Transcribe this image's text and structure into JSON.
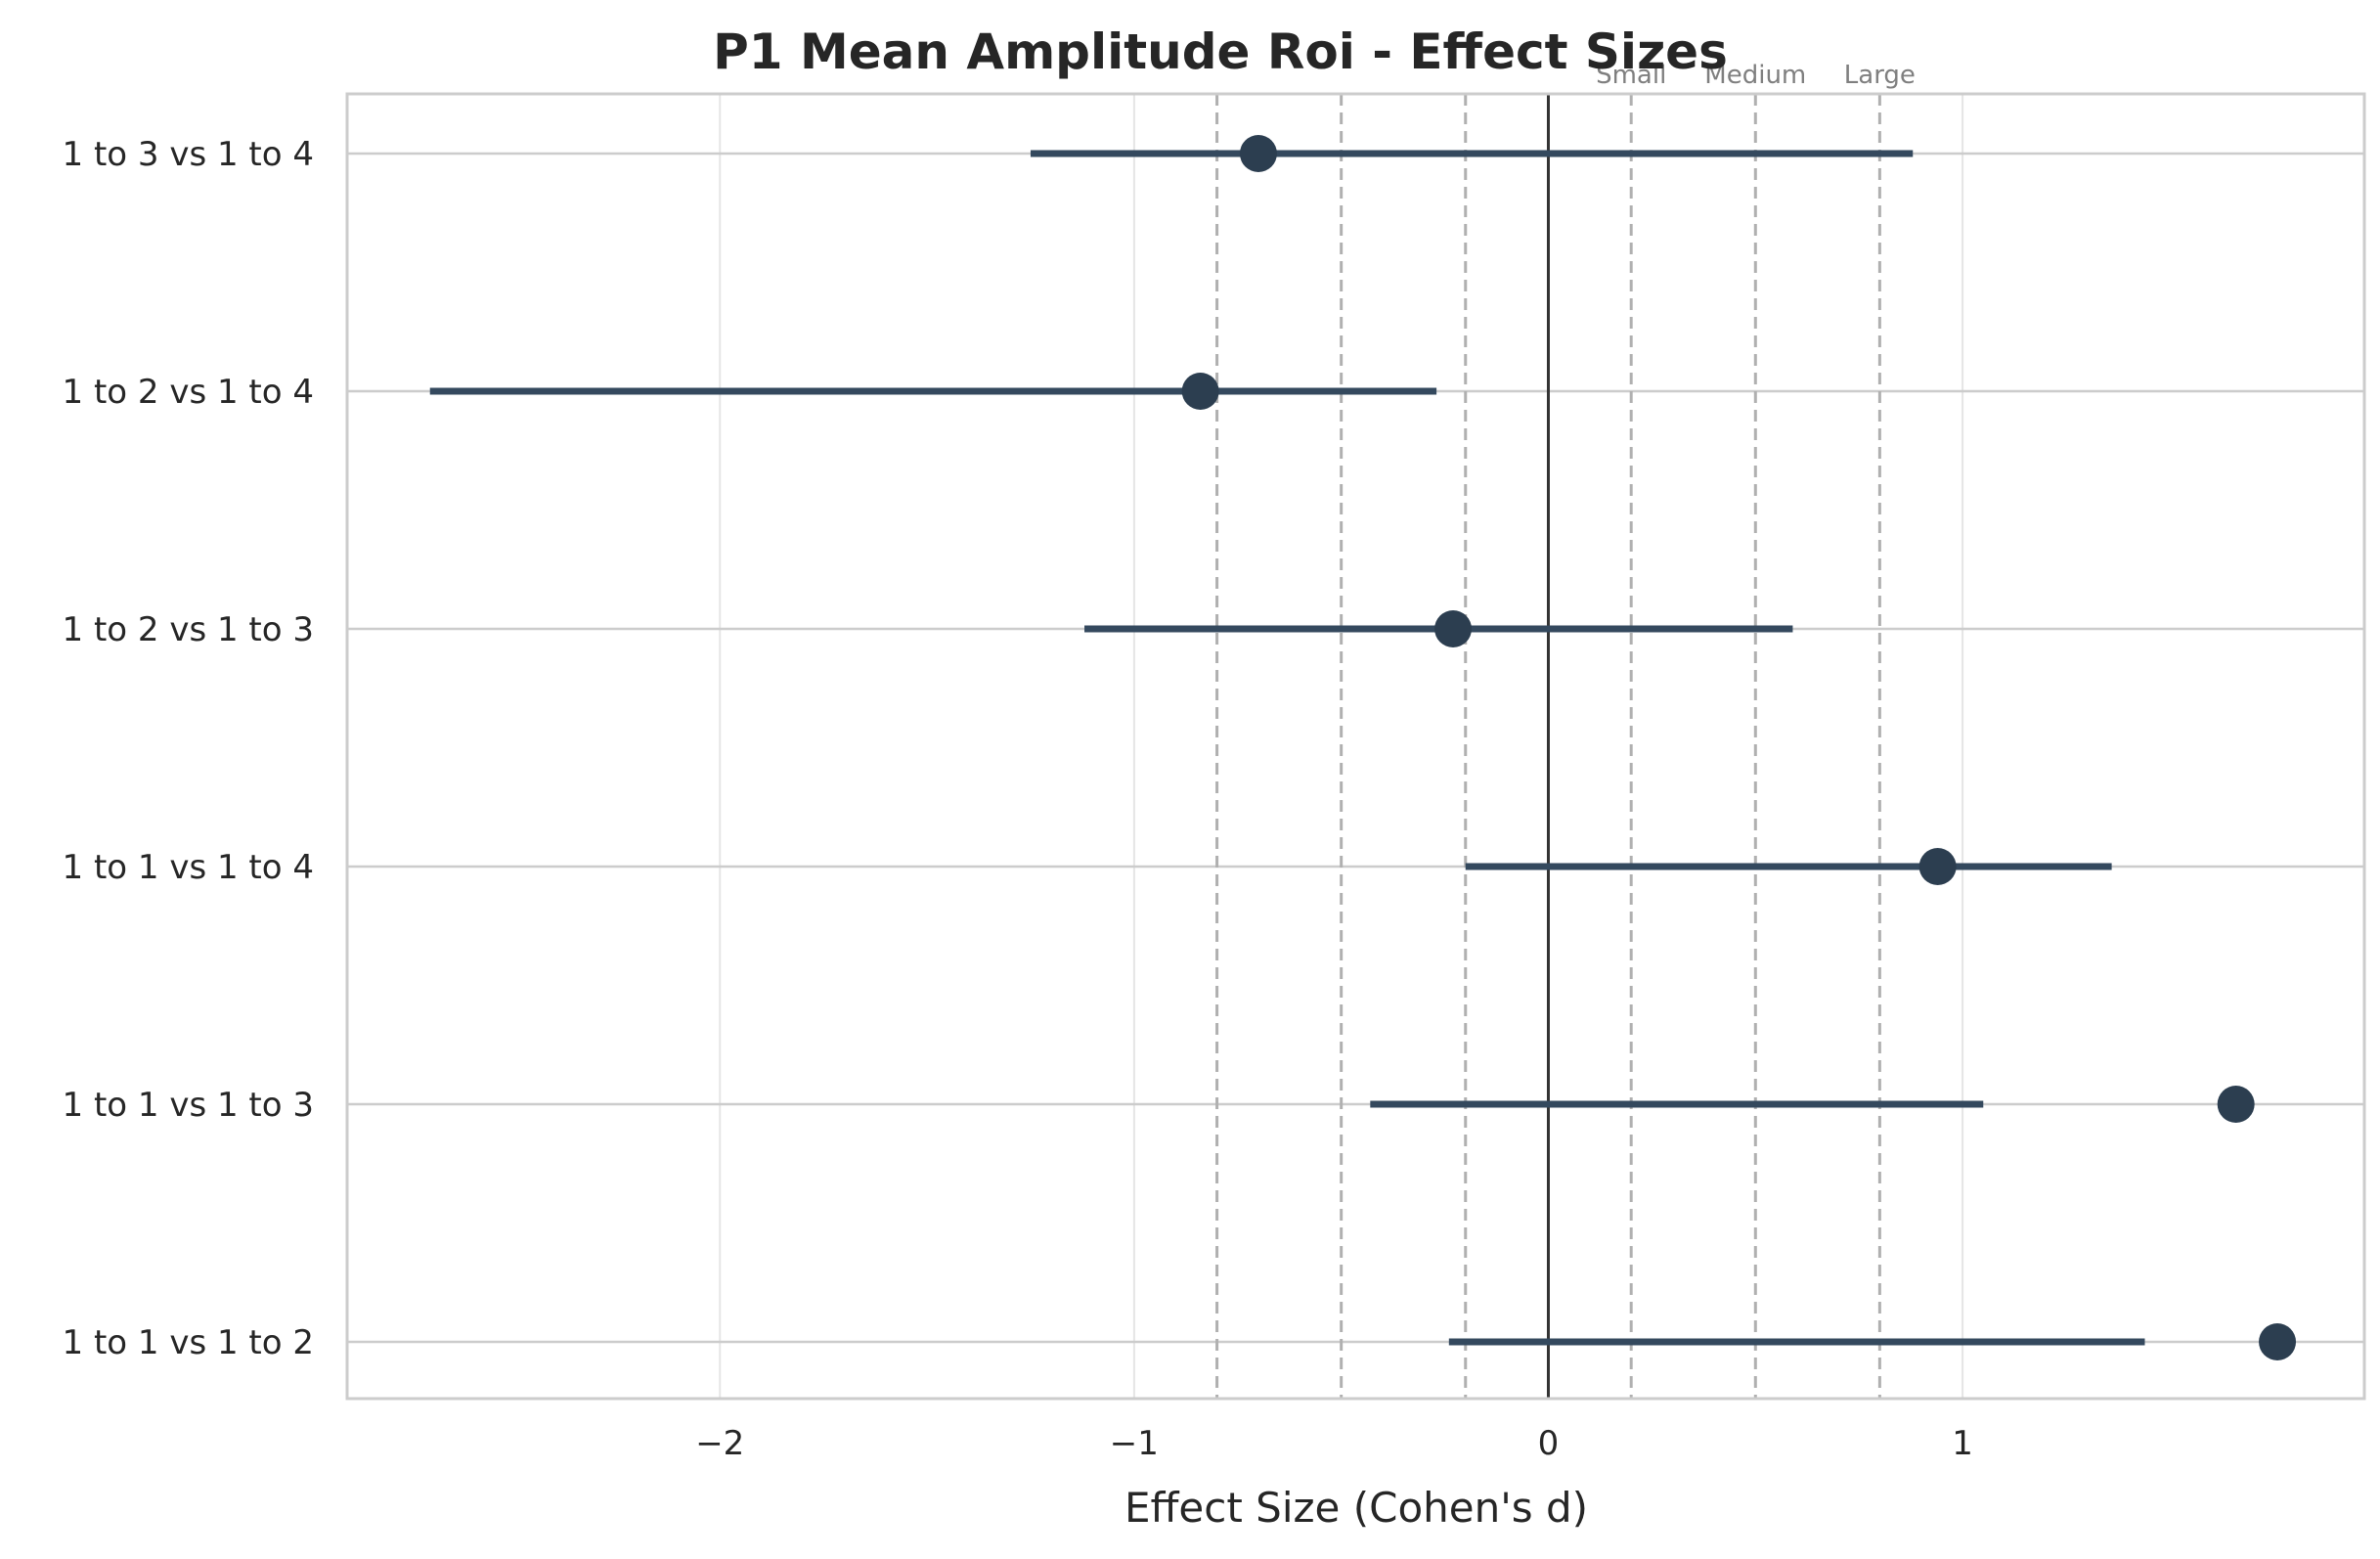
{
  "chart_data": {
    "type": "scatter",
    "title": "P1 Mean Amplitude Roi - Effect Sizes",
    "xlabel": "Effect Size (Cohen's d)",
    "ylabel": "",
    "xlim": [
      -2.9,
      1.97
    ],
    "x_ticks": [
      {
        "value": -2,
        "label": "−2"
      },
      {
        "value": -1,
        "label": "−1"
      },
      {
        "value": 0,
        "label": "0"
      },
      {
        "value": 1,
        "label": "1"
      }
    ],
    "grid": true,
    "categories": [
      "1 to 3 vs 1 to 4",
      "1 to 2 vs 1 to 4",
      "1 to 2 vs 1 to 3",
      "1 to 1 vs 1 to 4",
      "1 to 1 vs 1 to 3",
      "1 to 1 vs 1 to 2"
    ],
    "points": [
      {
        "label": "1 to 3 vs 1 to 4",
        "d": -0.7,
        "ci_low": -1.25,
        "ci_high": 0.88
      },
      {
        "label": "1 to 2 vs 1 to 4",
        "d": -0.84,
        "ci_low": -2.7,
        "ci_high": -0.27
      },
      {
        "label": "1 to 2 vs 1 to 3",
        "d": -0.23,
        "ci_low": -1.12,
        "ci_high": 0.59
      },
      {
        "label": "1 to 1 vs 1 to 4",
        "d": 0.94,
        "ci_low": -0.2,
        "ci_high": 1.36
      },
      {
        "label": "1 to 1 vs 1 to 3",
        "d": 1.66,
        "ci_low": -0.43,
        "ci_high": 1.05
      },
      {
        "label": "1 to 1 vs 1 to 2",
        "d": 1.76,
        "ci_low": -0.24,
        "ci_high": 1.44
      }
    ],
    "reference_line": 0,
    "thresholds": [
      {
        "name": "Small",
        "value": 0.2
      },
      {
        "name": "Medium",
        "value": 0.5
      },
      {
        "name": "Large",
        "value": 0.8
      }
    ],
    "colors": {
      "marker": "#2c3e50",
      "ci_line": "#34495e",
      "zero_line": "#333333",
      "threshold_line": "#b0b0b0",
      "grid": "#e5e5e5",
      "row_grid": "#cccccc",
      "frame": "#cccccc"
    }
  }
}
